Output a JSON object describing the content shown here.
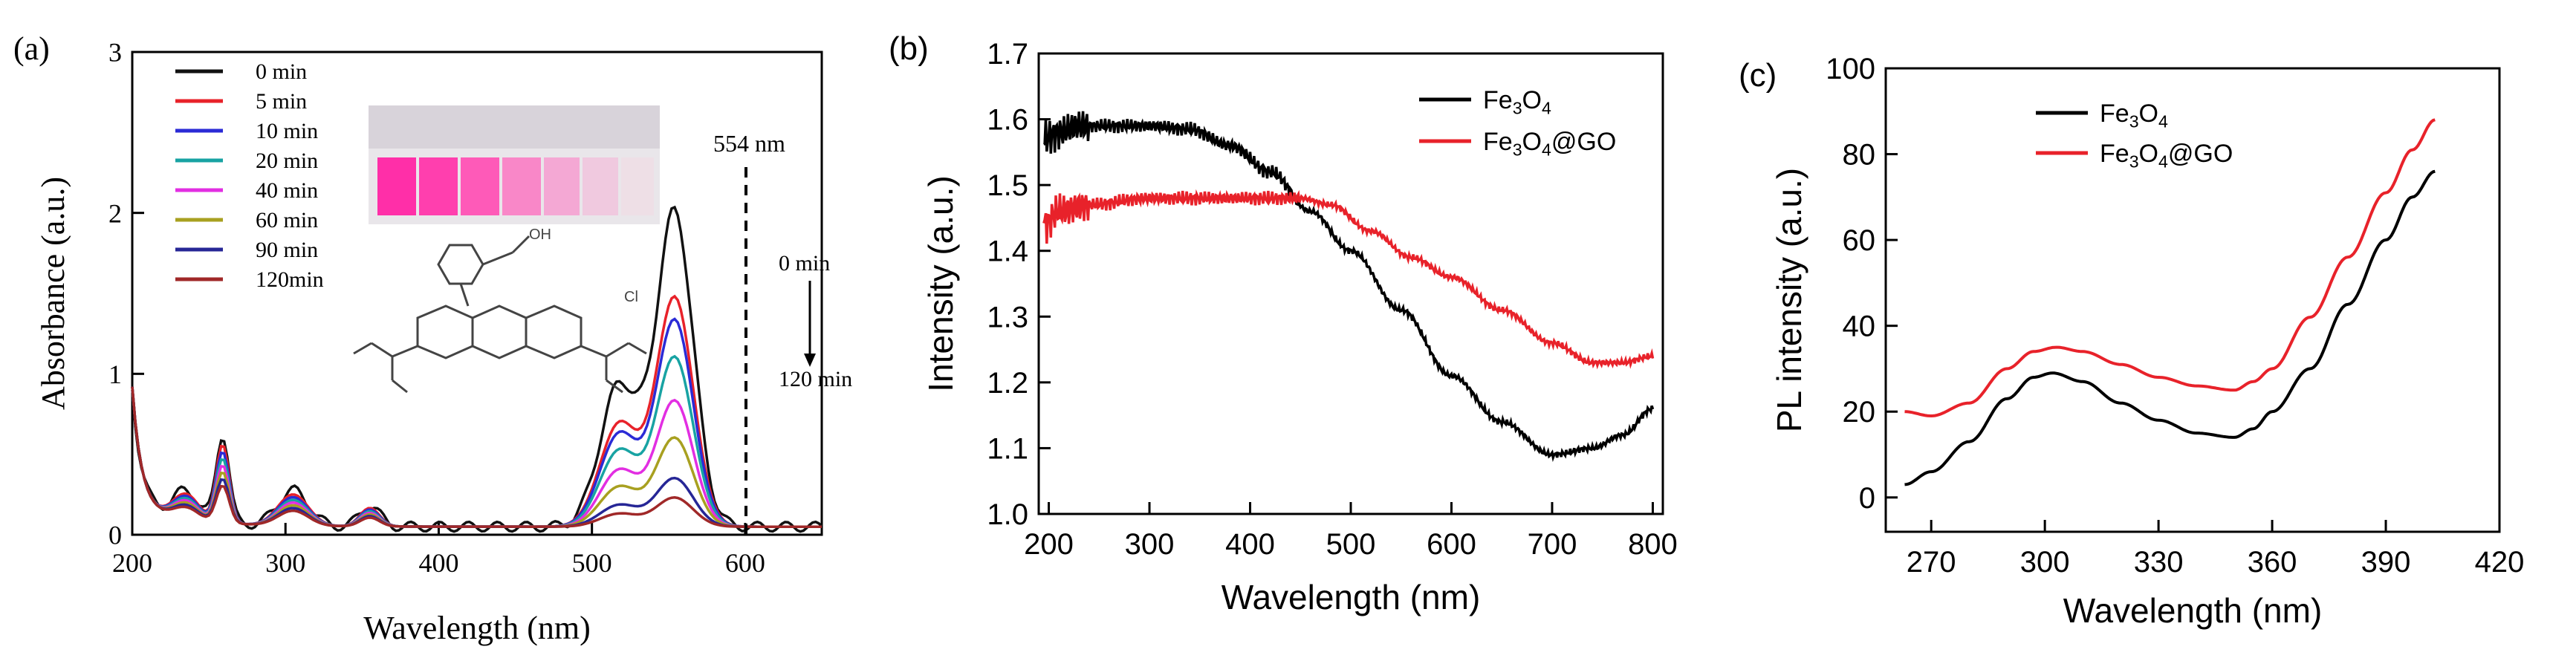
{
  "chart_data": [
    {
      "panel_label": "(a)",
      "type": "line",
      "xlabel": "Wavelength (nm)",
      "ylabel": "Absorbance (a.u.)",
      "xlim": [
        200,
        650
      ],
      "ylim": [
        0,
        3
      ],
      "xticks": [
        200,
        300,
        400,
        500,
        600
      ],
      "yticks": [
        0,
        1,
        2,
        3
      ],
      "legend_placement": "top-left",
      "annotations": {
        "peak": "554 nm",
        "time_start": "0 min",
        "time_end": "120 min",
        "counter_ion": "Cl",
        "carboxyl": "OH"
      },
      "series": [
        {
          "name": "0 min",
          "color": "#111111",
          "peak": 1.95,
          "uv": 0.52
        },
        {
          "name": "5 min",
          "color": "#e8222a",
          "peak": 1.42,
          "uv": 0.46
        },
        {
          "name": "10 min",
          "color": "#2b2bd6",
          "peak": 1.28,
          "uv": 0.42
        },
        {
          "name": "20 min",
          "color": "#18a3a3",
          "peak": 1.05,
          "uv": 0.38
        },
        {
          "name": "40 min",
          "color": "#e22ee2",
          "peak": 0.78,
          "uv": 0.34
        },
        {
          "name": "60 min",
          "color": "#a8a020",
          "peak": 0.55,
          "uv": 0.3
        },
        {
          "name": "90 min",
          "color": "#262696",
          "peak": 0.3,
          "uv": 0.26
        },
        {
          "name": "120min",
          "color": "#a02828",
          "peak": 0.18,
          "uv": 0.22
        }
      ]
    },
    {
      "panel_label": "(b)",
      "type": "line",
      "xlabel": "Wavelength (nm)",
      "ylabel": "Intensity (a.u.)",
      "xlim": [
        190,
        810
      ],
      "ylim": [
        1.0,
        1.7
      ],
      "xticks": [
        200,
        300,
        400,
        500,
        600,
        700,
        800
      ],
      "yticks": [
        1.0,
        1.1,
        1.2,
        1.3,
        1.4,
        1.5,
        1.6,
        1.7
      ],
      "legend_placement": "top-right",
      "series": [
        {
          "name": "Fe3O4",
          "legend_main": "Fe",
          "legend_sub1": "3",
          "legend_mid": "O",
          "legend_sub2": "4",
          "legend_tail": "",
          "color": "#000000",
          "x": [
            195,
            210,
            230,
            260,
            300,
            340,
            380,
            420,
            460,
            500,
            550,
            600,
            650,
            700,
            740,
            770,
            800
          ],
          "y": [
            1.57,
            1.58,
            1.59,
            1.59,
            1.59,
            1.585,
            1.56,
            1.52,
            1.46,
            1.4,
            1.31,
            1.21,
            1.14,
            1.09,
            1.1,
            1.12,
            1.16
          ]
        },
        {
          "name": "Fe3O4@GO",
          "legend_main": "Fe",
          "legend_sub1": "3",
          "legend_mid": "O",
          "legend_sub2": "4",
          "legend_tail": "@GO",
          "color": "#e8222a",
          "x": [
            195,
            210,
            240,
            300,
            350,
            400,
            450,
            480,
            520,
            560,
            600,
            650,
            700,
            740,
            770,
            800
          ],
          "y": [
            1.44,
            1.46,
            1.47,
            1.48,
            1.48,
            1.48,
            1.48,
            1.47,
            1.43,
            1.39,
            1.36,
            1.31,
            1.26,
            1.23,
            1.23,
            1.24
          ]
        }
      ]
    },
    {
      "panel_label": "(c)",
      "type": "line",
      "xlabel": "Wavelength (nm)",
      "ylabel": "PL intensity (a.u.)",
      "xlim": [
        258,
        420
      ],
      "ylim": [
        -8,
        100
      ],
      "xticks": [
        270,
        300,
        330,
        360,
        390,
        420
      ],
      "yticks": [
        0,
        20,
        40,
        60,
        80,
        100
      ],
      "legend_placement": "top-left",
      "series": [
        {
          "name": "Fe3O4",
          "legend_main": "Fe",
          "legend_sub1": "3",
          "legend_mid": "O",
          "legend_sub2": "4",
          "legend_tail": "",
          "color": "#000000",
          "x": [
            263,
            270,
            280,
            290,
            297,
            302,
            310,
            320,
            330,
            340,
            350,
            355,
            360,
            370,
            380,
            390,
            397,
            403
          ],
          "y": [
            3,
            6,
            13,
            23,
            28,
            29,
            27,
            22,
            18,
            15,
            14,
            16,
            20,
            30,
            45,
            60,
            70,
            76
          ]
        },
        {
          "name": "Fe3O4@GO",
          "legend_main": "Fe",
          "legend_sub1": "3",
          "legend_mid": "O",
          "legend_sub2": "4",
          "legend_tail": "@GO",
          "color": "#e8222a",
          "x": [
            263,
            270,
            280,
            290,
            297,
            303,
            310,
            320,
            330,
            340,
            350,
            355,
            360,
            370,
            380,
            390,
            397,
            403
          ],
          "y": [
            20,
            19,
            22,
            30,
            34,
            35,
            34,
            31,
            28,
            26,
            25,
            27,
            30,
            42,
            56,
            71,
            81,
            88
          ]
        }
      ]
    }
  ]
}
